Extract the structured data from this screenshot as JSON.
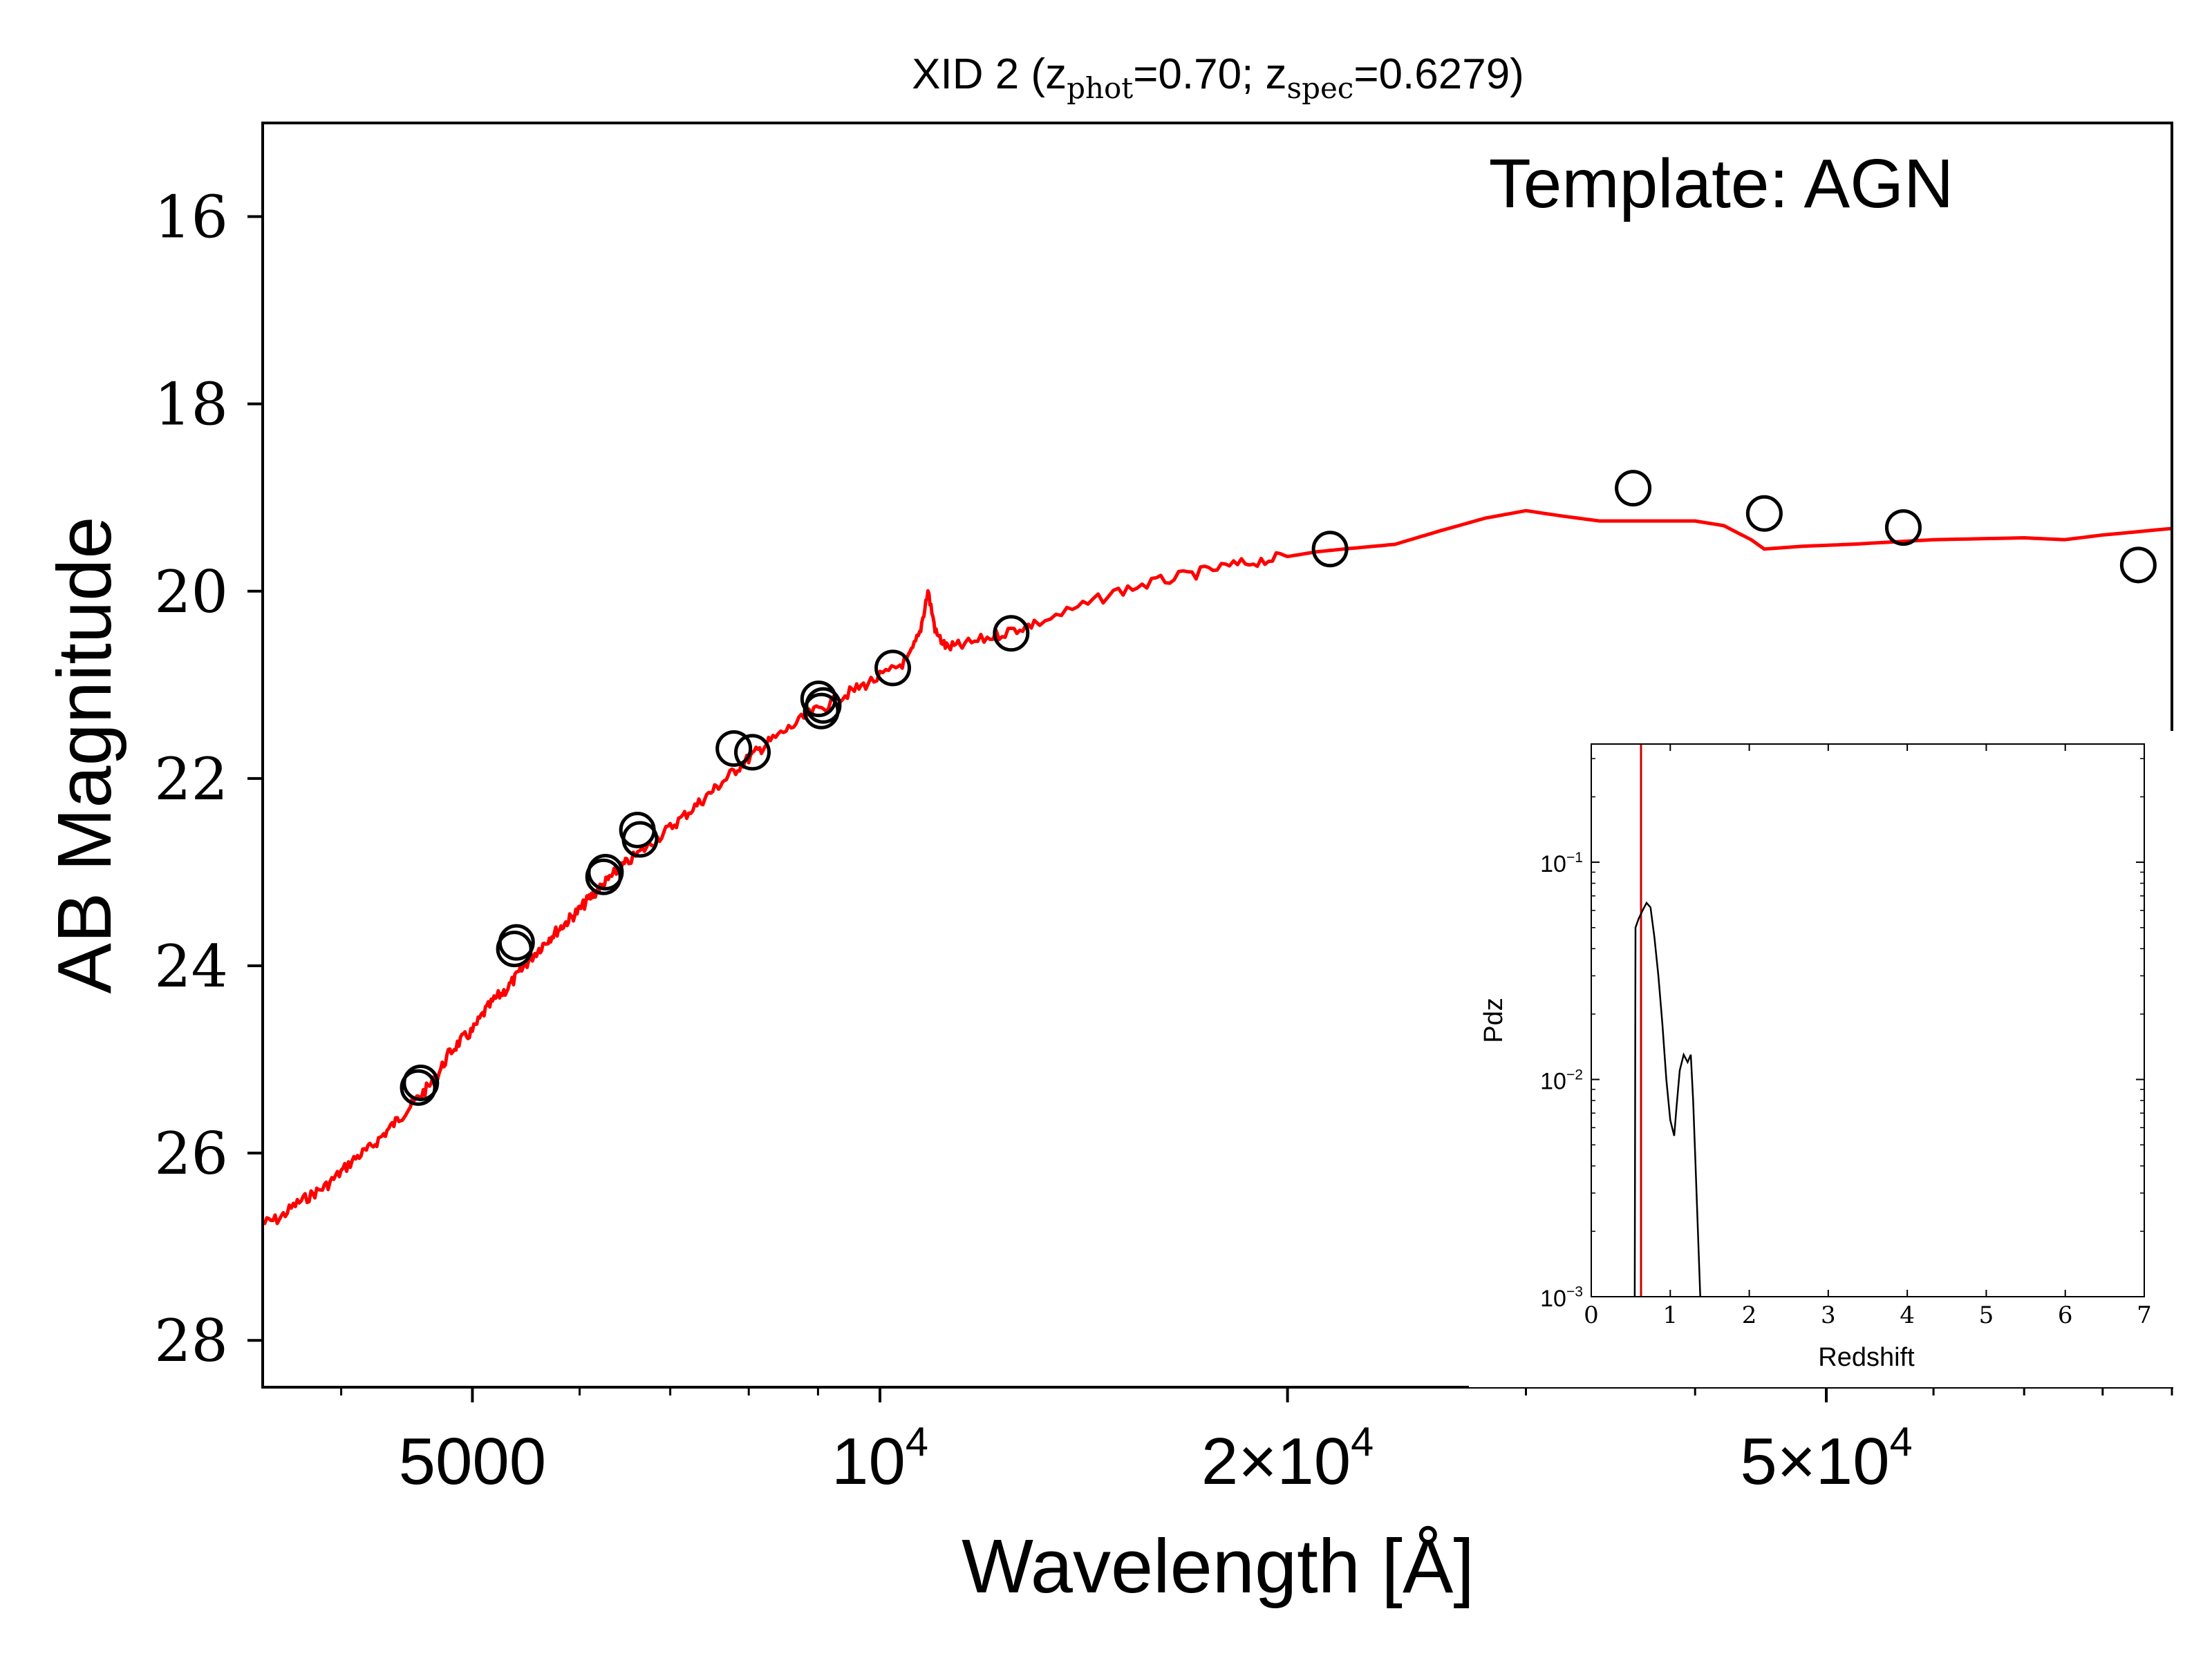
{
  "chart_data": [
    {
      "type": "scatter",
      "title": {
        "prefix": "XID 2 (z",
        "sub1": "phot",
        "mid": "=0.70; z",
        "sub2": "spec",
        "suffix": "=0.6279)"
      },
      "annotation": "Template: AGN",
      "xlabel": "Wavelength [Å]",
      "ylabel": "AB Magnitude",
      "xscale": "log",
      "xlim": [
        3500,
        90000
      ],
      "ylim": [
        28.5,
        15
      ],
      "y_inverted": true,
      "x_ticks": [
        {
          "value": 5000,
          "label": "5000"
        },
        {
          "value": 10000,
          "label": "10",
          "sup": "4"
        },
        {
          "value": 20000,
          "label": "2×10",
          "sup": "4"
        },
        {
          "value": 50000,
          "label": "5×10",
          "sup": "4"
        }
      ],
      "y_ticks": [
        {
          "value": 16,
          "label": "16"
        },
        {
          "value": 18,
          "label": "18"
        },
        {
          "value": 20,
          "label": "20"
        },
        {
          "value": 22,
          "label": "22"
        },
        {
          "value": 24,
          "label": "24"
        },
        {
          "value": 26,
          "label": "26"
        },
        {
          "value": 28,
          "label": "28"
        }
      ],
      "series": [
        {
          "kind": "line",
          "color": "#ff0000",
          "points": [
            [
              3500,
              26.75
            ],
            [
              3600,
              26.7
            ],
            [
              3700,
              26.55
            ],
            [
              3800,
              26.45
            ],
            [
              3900,
              26.35
            ],
            [
              4000,
              26.2
            ],
            [
              4100,
              26.05
            ],
            [
              4200,
              25.95
            ],
            [
              4300,
              25.8
            ],
            [
              4400,
              25.65
            ],
            [
              4500,
              25.5
            ],
            [
              4600,
              25.35
            ],
            [
              4700,
              25.2
            ],
            [
              4800,
              24.95
            ],
            [
              4900,
              24.8
            ],
            [
              5000,
              24.7
            ],
            [
              5100,
              24.5
            ],
            [
              5200,
              24.35
            ],
            [
              5300,
              24.25
            ],
            [
              5400,
              24.1
            ],
            [
              5500,
              23.95
            ],
            [
              5600,
              23.82
            ],
            [
              5700,
              23.7
            ],
            [
              5800,
              23.6
            ],
            [
              5900,
              23.5
            ],
            [
              6000,
              23.4
            ],
            [
              6100,
              23.28
            ],
            [
              6200,
              23.18
            ],
            [
              6300,
              23.08
            ],
            [
              6400,
              22.98
            ],
            [
              6500,
              22.9
            ],
            [
              6700,
              22.75
            ],
            [
              6900,
              22.6
            ],
            [
              7100,
              22.45
            ],
            [
              7300,
              22.3
            ],
            [
              7500,
              22.15
            ],
            [
              7700,
              22.0
            ],
            [
              7900,
              21.85
            ],
            [
              8100,
              21.72
            ],
            [
              8300,
              21.6
            ],
            [
              8600,
              21.45
            ],
            [
              8900,
              21.3
            ],
            [
              9200,
              21.2
            ],
            [
              9500,
              21.08
            ],
            [
              9800,
              20.98
            ],
            [
              10200,
              20.85
            ],
            [
              10500,
              20.72
            ],
            [
              10700,
              20.45
            ],
            [
              10850,
              20.0
            ],
            [
              11000,
              20.45
            ],
            [
              11200,
              20.6
            ],
            [
              11500,
              20.58
            ],
            [
              12000,
              20.5
            ],
            [
              12500,
              20.42
            ],
            [
              13000,
              20.35
            ],
            [
              14000,
              20.18
            ],
            [
              15000,
              20.0
            ],
            [
              16000,
              19.9
            ],
            [
              17000,
              19.82
            ],
            [
              18000,
              19.74
            ],
            [
              19000,
              19.68
            ],
            [
              20000,
              19.63
            ],
            [
              21000,
              19.58
            ],
            [
              22000,
              19.55
            ],
            [
              24000,
              19.5
            ],
            [
              26000,
              19.35
            ],
            [
              28000,
              19.22
            ],
            [
              30000,
              19.14
            ],
            [
              32000,
              19.2
            ],
            [
              34000,
              19.25
            ],
            [
              36000,
              19.25
            ],
            [
              38000,
              19.25
            ],
            [
              40000,
              19.25
            ],
            [
              42000,
              19.3
            ],
            [
              44000,
              19.45
            ],
            [
              45000,
              19.55
            ],
            [
              48000,
              19.52
            ],
            [
              52000,
              19.5
            ],
            [
              60000,
              19.45
            ],
            [
              70000,
              19.43
            ],
            [
              75000,
              19.45
            ],
            [
              80000,
              19.4
            ],
            [
              90000,
              19.33
            ]
          ]
        },
        {
          "kind": "points",
          "marker": "open-circle",
          "points": [
            [
              4560,
              25.3
            ],
            [
              4580,
              25.25
            ],
            [
              5370,
              23.82
            ],
            [
              5390,
              23.75
            ],
            [
              6250,
              23.05
            ],
            [
              6270,
              23.0
            ],
            [
              6620,
              22.55
            ],
            [
              6650,
              22.65
            ],
            [
              7800,
              21.68
            ],
            [
              8050,
              21.72
            ],
            [
              9010,
              21.15
            ],
            [
              9050,
              21.28
            ],
            [
              9080,
              21.22
            ],
            [
              10220,
              20.82
            ],
            [
              12500,
              20.45
            ],
            [
              21500,
              19.55
            ],
            [
              36000,
              18.9
            ],
            [
              45000,
              19.17
            ],
            [
              57000,
              19.32
            ],
            [
              85000,
              19.72
            ]
          ]
        }
      ]
    },
    {
      "type": "line",
      "xlabel": "Redshift",
      "ylabel": "Pdz",
      "xscale": "linear",
      "yscale": "log",
      "xlim": [
        0,
        7
      ],
      "ylim": [
        0.001,
        0.35
      ],
      "x_ticks": [
        {
          "value": 0,
          "label": "0"
        },
        {
          "value": 1,
          "label": "1"
        },
        {
          "value": 2,
          "label": "2"
        },
        {
          "value": 3,
          "label": "3"
        },
        {
          "value": 4,
          "label": "4"
        },
        {
          "value": 5,
          "label": "5"
        },
        {
          "value": 6,
          "label": "6"
        },
        {
          "value": 7,
          "label": "7"
        }
      ],
      "y_ticks": [
        {
          "value": 0.1,
          "label": "10",
          "sup": "−1"
        },
        {
          "value": 0.01,
          "label": "10",
          "sup": "−2"
        },
        {
          "value": 0.001,
          "label": "10",
          "sup": "−3"
        }
      ],
      "vline": {
        "x": 0.63,
        "color": "#cc0000"
      },
      "series": [
        {
          "color": "#000000",
          "points": [
            [
              0.55,
              0.001
            ],
            [
              0.56,
              0.05
            ],
            [
              0.6,
              0.055
            ],
            [
              0.65,
              0.06
            ],
            [
              0.7,
              0.065
            ],
            [
              0.75,
              0.062
            ],
            [
              0.8,
              0.045
            ],
            [
              0.85,
              0.03
            ],
            [
              0.9,
              0.018
            ],
            [
              0.95,
              0.01
            ],
            [
              1.0,
              0.0065
            ],
            [
              1.05,
              0.0055
            ],
            [
              1.08,
              0.0075
            ],
            [
              1.12,
              0.011
            ],
            [
              1.17,
              0.013
            ],
            [
              1.22,
              0.012
            ],
            [
              1.26,
              0.013
            ],
            [
              1.29,
              0.008
            ],
            [
              1.32,
              0.004
            ],
            [
              1.35,
              0.002
            ],
            [
              1.38,
              0.001
            ]
          ]
        }
      ]
    }
  ]
}
